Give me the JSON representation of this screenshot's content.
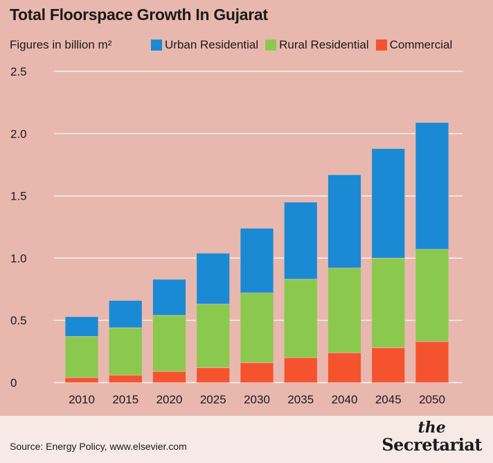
{
  "title": "Total Floorspace Growth In Gujarat",
  "subtitle": "Figures in billion m²",
  "legend": [
    {
      "label": "Urban Residential",
      "color": "#1a8ad4"
    },
    {
      "label": "Rural Residential",
      "color": "#8ac94e"
    },
    {
      "label": "Commercial",
      "color": "#f5532e"
    }
  ],
  "source": "Source: Energy Policy, www.elsevier.com",
  "logo": {
    "the": "the",
    "main": "Secretariat"
  },
  "chart_data": {
    "type": "bar",
    "stacked": true,
    "title": "Total Floorspace Growth In Gujarat",
    "ylabel": "Figures in billion m²",
    "xlabel": "",
    "ylim": [
      0,
      2.5
    ],
    "yticks": [
      "0",
      "0.5",
      "1.0",
      "1.5",
      "2.0",
      "2.5"
    ],
    "ytick_values": [
      0,
      0.5,
      1.0,
      1.5,
      2.0,
      2.5
    ],
    "grid": "horizontal",
    "legend_position": "top",
    "categories": [
      "2010",
      "2015",
      "2020",
      "2025",
      "2030",
      "2035",
      "2040",
      "2045",
      "2050"
    ],
    "series": [
      {
        "name": "Commercial",
        "color": "#f5532e",
        "values": [
          0.04,
          0.06,
          0.09,
          0.12,
          0.16,
          0.2,
          0.24,
          0.28,
          0.33
        ]
      },
      {
        "name": "Rural Residential",
        "color": "#8ac94e",
        "values": [
          0.33,
          0.38,
          0.45,
          0.51,
          0.56,
          0.63,
          0.68,
          0.72,
          0.74
        ]
      },
      {
        "name": "Urban Residential",
        "color": "#1a8ad4",
        "values": [
          0.16,
          0.22,
          0.29,
          0.41,
          0.52,
          0.62,
          0.75,
          0.88,
          1.02
        ]
      }
    ]
  }
}
